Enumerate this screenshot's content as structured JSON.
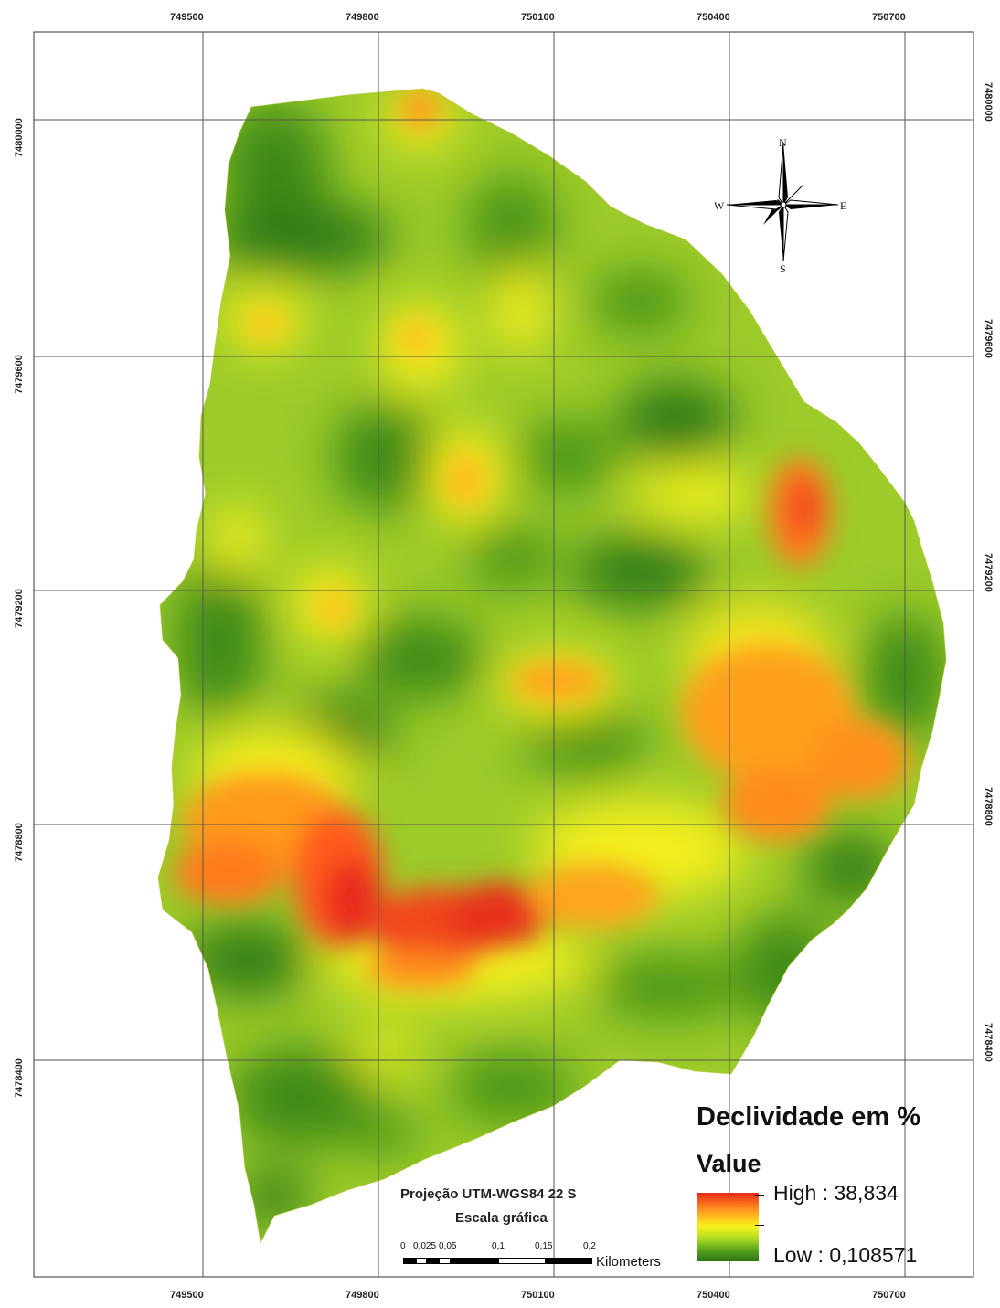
{
  "map": {
    "legend": {
      "title": "Declividade em %",
      "subtitle": "Value",
      "high_label": "High : 38,834",
      "low_label": "Low : 0,108571",
      "ramp_colors": [
        "#e82a1a",
        "#ff8a1e",
        "#ffd11e",
        "#f3f51a",
        "#a8d822",
        "#4f9e1c",
        "#2e7514"
      ]
    },
    "projection": "Projeção UTM-WGS84 22 S",
    "scale_bar": {
      "title": "Escala gráfica",
      "labels": [
        "0",
        "0,025",
        "0,05",
        "0,1",
        "0,15",
        "0,2"
      ],
      "unit": "Kilometers"
    },
    "grid": {
      "easting_labels": [
        "749500",
        "749800",
        "750100",
        "750400",
        "750700"
      ],
      "northing_labels": [
        "7480000",
        "7479600",
        "7479200",
        "7478800",
        "7478400"
      ]
    },
    "north_arrow": {
      "n": "N",
      "s": "S",
      "e": "E",
      "w": "W"
    }
  }
}
